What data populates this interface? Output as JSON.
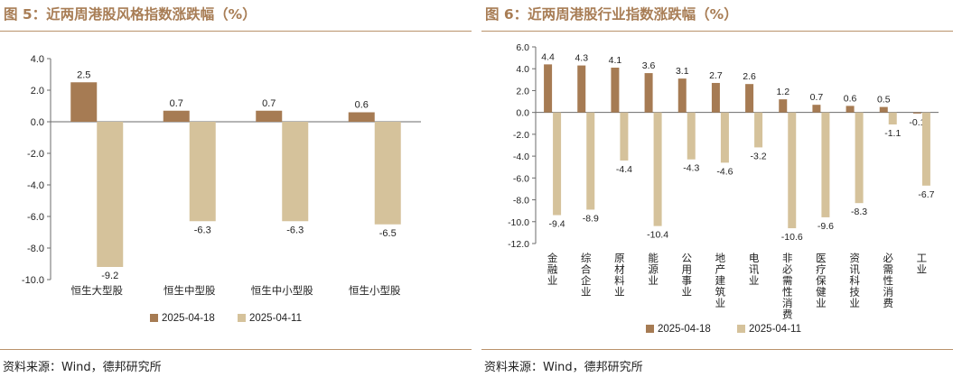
{
  "colors": {
    "accent": "#a87d55",
    "series_a": "#a67b53",
    "series_b": "#d5c29b"
  },
  "left": {
    "title": "图 5：近两周港股风格指数涨跌幅（%）",
    "source": "资料来源：Wind，德邦研究所"
  },
  "right": {
    "title": "图 6：近两周港股行业指数涨跌幅（%）",
    "source": "资料来源：Wind，德邦研究所"
  },
  "chart_data": [
    {
      "type": "bar",
      "title": "图 5：近两周港股风格指数涨跌幅（%）",
      "categories": [
        "恒生大型股",
        "恒生中型股",
        "恒生中小型股",
        "恒生小型股"
      ],
      "series": [
        {
          "name": "2025-04-18",
          "values": [
            2.5,
            0.7,
            0.7,
            0.6
          ]
        },
        {
          "name": "2025-04-11",
          "values": [
            -9.2,
            -6.3,
            -6.3,
            -6.5
          ]
        }
      ],
      "ylim": [
        -10.0,
        4.0
      ],
      "yticks": [
        "4.0",
        "2.0",
        "0.0",
        "-2.0",
        "-4.0",
        "-6.0",
        "-8.0",
        "-10.0"
      ],
      "legend_position": "bottom",
      "grid": false
    },
    {
      "type": "bar",
      "title": "图 6：近两周港股行业指数涨跌幅（%）",
      "categories": [
        "金融业",
        "综合企业",
        "原材料业",
        "能源业",
        "公用事业",
        "地产建筑业",
        "电讯业",
        "非必需性消费",
        "医疗保健业",
        "资讯科技业",
        "必需性消费",
        "工业"
      ],
      "series": [
        {
          "name": "2025-04-18",
          "values": [
            4.4,
            4.3,
            4.1,
            3.6,
            3.1,
            2.7,
            2.6,
            1.2,
            0.7,
            0.6,
            0.5,
            -0.1
          ]
        },
        {
          "name": "2025-04-11",
          "values": [
            -9.4,
            -8.9,
            -4.4,
            -10.4,
            -4.3,
            -4.6,
            -3.2,
            -10.6,
            -9.6,
            -8.3,
            -1.1,
            -6.7
          ]
        }
      ],
      "ylim": [
        -12.0,
        6.0
      ],
      "yticks": [
        "6.0",
        "4.0",
        "2.0",
        "0.0",
        "-2.0",
        "-4.0",
        "-6.0",
        "-8.0",
        "-10.0",
        "-12.0"
      ],
      "legend_position": "bottom",
      "grid": false
    }
  ]
}
